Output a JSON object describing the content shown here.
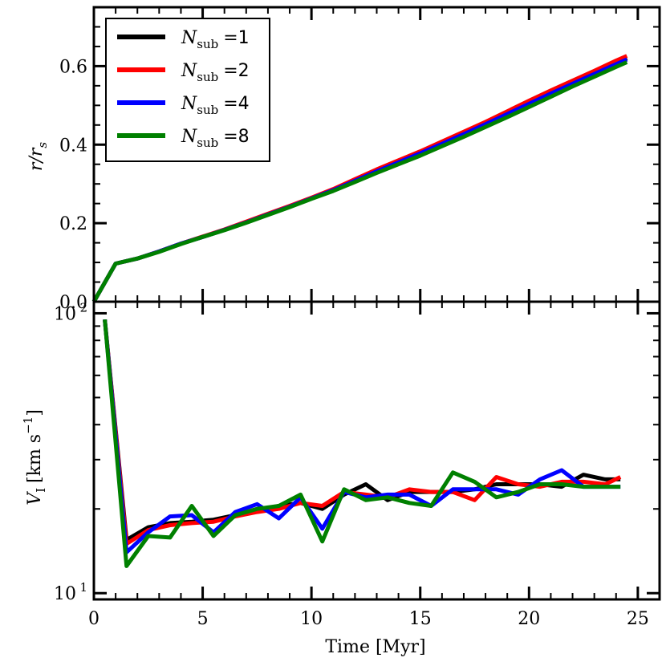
{
  "chart_data": [
    {
      "type": "line",
      "panel": "top",
      "ylabel_base": "r/r",
      "ylabel_sub": "s",
      "xlim": [
        0,
        26
      ],
      "ylim": [
        0.0,
        0.75
      ],
      "yticks": [
        0.0,
        0.2,
        0.4,
        0.6
      ],
      "ytick_labels": [
        "0.0",
        "0.2",
        "0.4",
        "0.6"
      ],
      "legend": {
        "placement": "top-left",
        "prefix": "N",
        "sub": "sub",
        "entries": [
          {
            "value": "1",
            "color": "#000000"
          },
          {
            "value": "2",
            "color": "#ff0000"
          },
          {
            "value": "4",
            "color": "#0000ff"
          },
          {
            "value": "8",
            "color": "#008000"
          }
        ]
      },
      "series": [
        {
          "name": "N_sub =1",
          "color": "#000000",
          "x": [
            0,
            1,
            2,
            3,
            4,
            5,
            6,
            7,
            8,
            9,
            10,
            11,
            12,
            13,
            14,
            15,
            16,
            17,
            18,
            19,
            20,
            21,
            22,
            23,
            24,
            24.5
          ],
          "y": [
            0.0,
            0.097,
            0.11,
            0.128,
            0.148,
            0.165,
            0.183,
            0.203,
            0.223,
            0.243,
            0.263,
            0.285,
            0.31,
            0.335,
            0.358,
            0.38,
            0.405,
            0.43,
            0.455,
            0.482,
            0.508,
            0.533,
            0.558,
            0.583,
            0.608,
            0.62
          ]
        },
        {
          "name": "N_sub =2",
          "color": "#ff0000",
          "x": [
            0,
            1,
            2,
            3,
            4,
            5,
            6,
            7,
            8,
            9,
            10,
            11,
            12,
            13,
            14,
            15,
            16,
            17,
            18,
            19,
            20,
            21,
            22,
            23,
            24,
            24.5
          ],
          "y": [
            0.0,
            0.097,
            0.11,
            0.128,
            0.148,
            0.166,
            0.184,
            0.204,
            0.224,
            0.244,
            0.265,
            0.287,
            0.312,
            0.337,
            0.36,
            0.383,
            0.408,
            0.433,
            0.458,
            0.485,
            0.512,
            0.538,
            0.563,
            0.588,
            0.614,
            0.626
          ]
        },
        {
          "name": "N_sub =4",
          "color": "#0000ff",
          "x": [
            0,
            1,
            2,
            3,
            4,
            5,
            6,
            7,
            8,
            9,
            10,
            11,
            12,
            13,
            14,
            15,
            16,
            17,
            18,
            19,
            20,
            21,
            22,
            23,
            24,
            24.5
          ],
          "y": [
            0.0,
            0.097,
            0.11,
            0.128,
            0.148,
            0.165,
            0.183,
            0.202,
            0.222,
            0.242,
            0.263,
            0.284,
            0.308,
            0.332,
            0.355,
            0.378,
            0.402,
            0.427,
            0.452,
            0.478,
            0.504,
            0.53,
            0.555,
            0.58,
            0.605,
            0.617
          ]
        },
        {
          "name": "N_sub =8",
          "color": "#008000",
          "x": [
            0,
            1,
            2,
            3,
            4,
            5,
            6,
            7,
            8,
            9,
            10,
            11,
            12,
            13,
            14,
            15,
            16,
            17,
            18,
            19,
            20,
            21,
            22,
            23,
            24,
            24.5
          ],
          "y": [
            0.0,
            0.097,
            0.11,
            0.127,
            0.147,
            0.165,
            0.182,
            0.201,
            0.221,
            0.241,
            0.262,
            0.282,
            0.305,
            0.328,
            0.35,
            0.372,
            0.396,
            0.42,
            0.445,
            0.47,
            0.496,
            0.522,
            0.548,
            0.573,
            0.598,
            0.61
          ]
        }
      ]
    },
    {
      "type": "line",
      "panel": "bottom",
      "yscale": "log",
      "ylabel_base": "V",
      "ylabel_sub": "I",
      "ylabel_unit": "[km s",
      "ylabel_exp": "−1",
      "ylabel_close": "]",
      "xlabel": "Time [Myr]",
      "xlim": [
        0,
        26
      ],
      "ylim": [
        9.5,
        110
      ],
      "xticks": [
        0,
        5,
        10,
        15,
        20,
        25
      ],
      "xtick_labels": [
        "0",
        "5",
        "10",
        "15",
        "20",
        "25"
      ],
      "ymajor": [
        10,
        100
      ],
      "ymajor_base": "10",
      "ymajor_exp": [
        "1",
        "2"
      ],
      "series": [
        {
          "name": "N_sub =1",
          "color": "#000000",
          "x": [
            0.5,
            1.5,
            2.5,
            3.5,
            4.5,
            5.5,
            6.5,
            7.5,
            8.5,
            9.5,
            10.5,
            11.5,
            12.5,
            13.5,
            14.5,
            15.5,
            16.5,
            17.5,
            18.5,
            19.5,
            20.5,
            21.5,
            22.5,
            23.5,
            24.2
          ],
          "y": [
            95,
            15.5,
            17.2,
            17.8,
            18.0,
            18.3,
            19.0,
            19.8,
            20.5,
            21.0,
            20.0,
            22.5,
            24.5,
            21.5,
            23.0,
            23.0,
            23.0,
            23.5,
            24.5,
            24.5,
            24.5,
            24.0,
            26.5,
            25.5,
            25.5
          ]
        },
        {
          "name": "N_sub =2",
          "color": "#ff0000",
          "x": [
            0.5,
            1.5,
            2.5,
            3.5,
            4.5,
            5.5,
            6.5,
            7.5,
            8.5,
            9.5,
            10.5,
            11.5,
            12.5,
            13.5,
            14.5,
            15.5,
            16.5,
            17.5,
            18.5,
            19.5,
            20.5,
            21.5,
            22.5,
            23.5,
            24.2
          ],
          "y": [
            95,
            15.0,
            16.8,
            17.5,
            17.8,
            18.0,
            18.8,
            19.5,
            20.0,
            21.0,
            20.5,
            23.0,
            22.5,
            22.0,
            23.5,
            23.0,
            23.0,
            21.5,
            26.0,
            24.5,
            24.0,
            25.0,
            25.0,
            24.5,
            26.0
          ]
        },
        {
          "name": "N_sub =4",
          "color": "#0000ff",
          "x": [
            0.5,
            1.5,
            2.5,
            3.5,
            4.5,
            5.5,
            6.5,
            7.5,
            8.5,
            9.5,
            10.5,
            11.5,
            12.5,
            13.5,
            14.5,
            15.5,
            16.5,
            17.5,
            18.5,
            19.5,
            20.5,
            21.5,
            22.5,
            23.5,
            24.2
          ],
          "y": [
            95,
            14.0,
            16.5,
            18.8,
            19.0,
            16.5,
            19.5,
            20.8,
            18.5,
            22.0,
            17.0,
            23.0,
            22.0,
            22.5,
            22.5,
            20.5,
            23.5,
            23.5,
            23.5,
            22.5,
            25.5,
            27.5,
            24.0,
            24.0,
            24.0
          ]
        },
        {
          "name": "N_sub =8",
          "color": "#008000",
          "x": [
            0.5,
            1.5,
            2.5,
            3.5,
            4.5,
            5.5,
            6.5,
            7.5,
            8.5,
            9.5,
            10.5,
            11.5,
            12.5,
            13.5,
            14.5,
            15.5,
            16.5,
            17.5,
            18.5,
            19.5,
            20.5,
            21.5,
            22.5,
            23.5,
            24.2
          ],
          "y": [
            95,
            12.5,
            16.0,
            15.8,
            20.5,
            16.0,
            19.0,
            20.0,
            20.5,
            22.5,
            15.3,
            23.5,
            21.5,
            22.0,
            21.0,
            20.5,
            27.0,
            25.0,
            22.0,
            23.0,
            24.5,
            24.5,
            24.0,
            24.0,
            24.0
          ]
        }
      ]
    }
  ]
}
